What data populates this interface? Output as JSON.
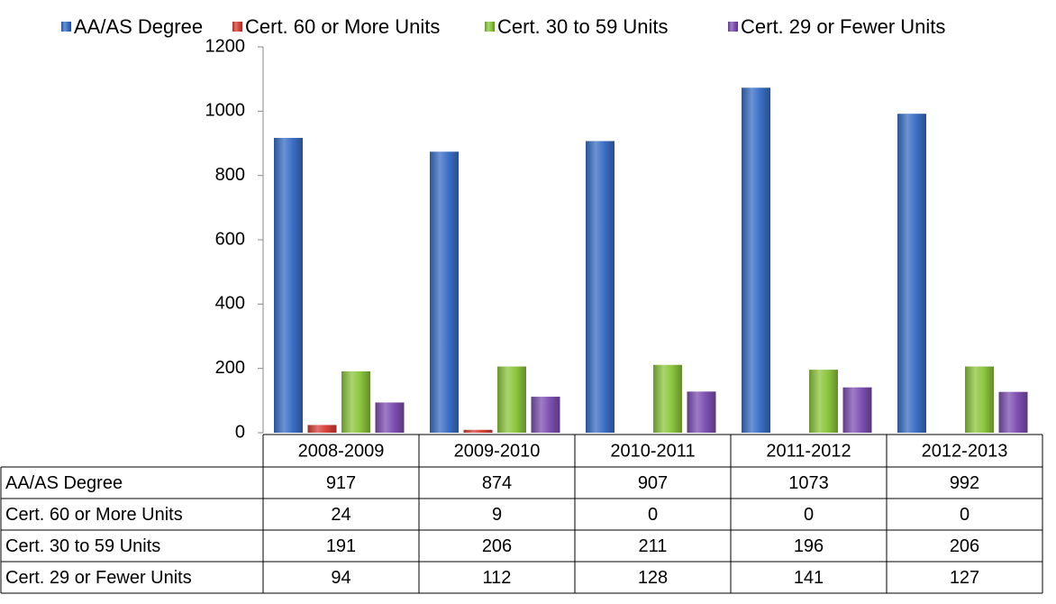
{
  "chart_data": {
    "type": "bar",
    "categories": [
      "2008-2009",
      "2009-2010",
      "2010-2011",
      "2011-2012",
      "2012-2013"
    ],
    "series": [
      {
        "name": "AA/AS Degree",
        "color": "#3b6fc6",
        "values": [
          917,
          874,
          907,
          1073,
          992
        ]
      },
      {
        "name": "Cert. 60 or More Units",
        "color": "#d8413b",
        "values": [
          24,
          9,
          0,
          0,
          0
        ]
      },
      {
        "name": "Cert. 30 to 59 Units",
        "color": "#8dc63f",
        "values": [
          191,
          206,
          211,
          196,
          206
        ]
      },
      {
        "name": "Cert. 29 or Fewer Units",
        "color": "#7e50b2",
        "values": [
          94,
          112,
          128,
          141,
          127
        ]
      }
    ],
    "ylim": [
      0,
      1200
    ],
    "yticks": [
      0,
      200,
      400,
      600,
      800,
      1000,
      1200
    ],
    "legend": "top",
    "data_table": true
  }
}
